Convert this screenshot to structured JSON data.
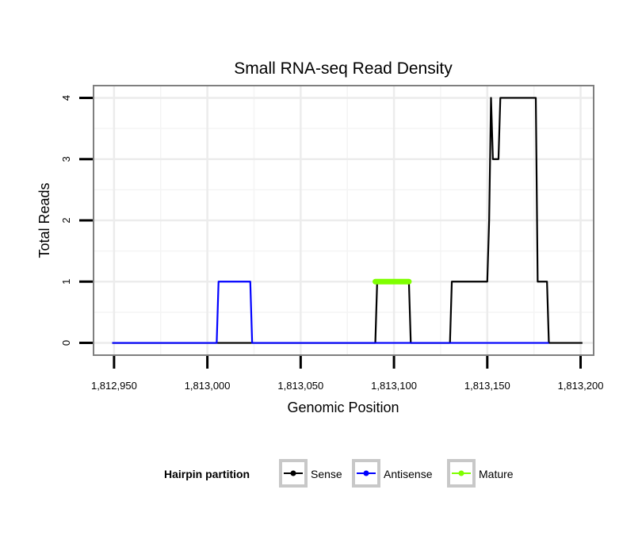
{
  "chart_data": {
    "type": "line",
    "title": "Small RNA-seq Read Density",
    "xlabel": "Genomic Position",
    "ylabel": "Total Reads",
    "xlim": [
      1812939,
      1813207
    ],
    "ylim": [
      -0.2,
      4.2
    ],
    "x_ticks": [
      1812950,
      1813000,
      1813050,
      1813100,
      1813150,
      1813200
    ],
    "x_tick_labels": [
      "1,812,950",
      "1,813,000",
      "1,813,050",
      "1,813,100",
      "1,813,150",
      "1,813,200"
    ],
    "y_ticks": [
      0,
      1,
      2,
      3,
      4
    ],
    "y_tick_labels": [
      "0",
      "1",
      "2",
      "3",
      "4"
    ],
    "grid": true,
    "legend": {
      "title": "Hairpin partition",
      "position": "bottom",
      "entries": [
        "Sense",
        "Antisense",
        "Mature"
      ]
    },
    "series": [
      {
        "name": "Sense",
        "color": "#000000",
        "x": [
          1812949,
          1813090,
          1813091,
          1813108,
          1813109,
          1813130,
          1813131,
          1813150,
          1813151,
          1813152,
          1813153,
          1813156,
          1813157,
          1813176,
          1813177,
          1813182,
          1813183,
          1813201
        ],
        "y": [
          0,
          0,
          1,
          1,
          0,
          0,
          1,
          1,
          2,
          4,
          3,
          3,
          4,
          4,
          1,
          1,
          0,
          0
        ]
      },
      {
        "name": "Antisense",
        "color": "#0000ff",
        "x": [
          1812949,
          1813005,
          1813006,
          1813023,
          1813024,
          1813090,
          1813108,
          1813183
        ],
        "y": [
          0,
          0,
          1,
          1,
          0,
          0,
          0,
          0
        ]
      },
      {
        "name": "Mature",
        "color": "#7fff00",
        "x": [
          1813090,
          1813108
        ],
        "y": [
          1,
          1
        ]
      }
    ]
  }
}
